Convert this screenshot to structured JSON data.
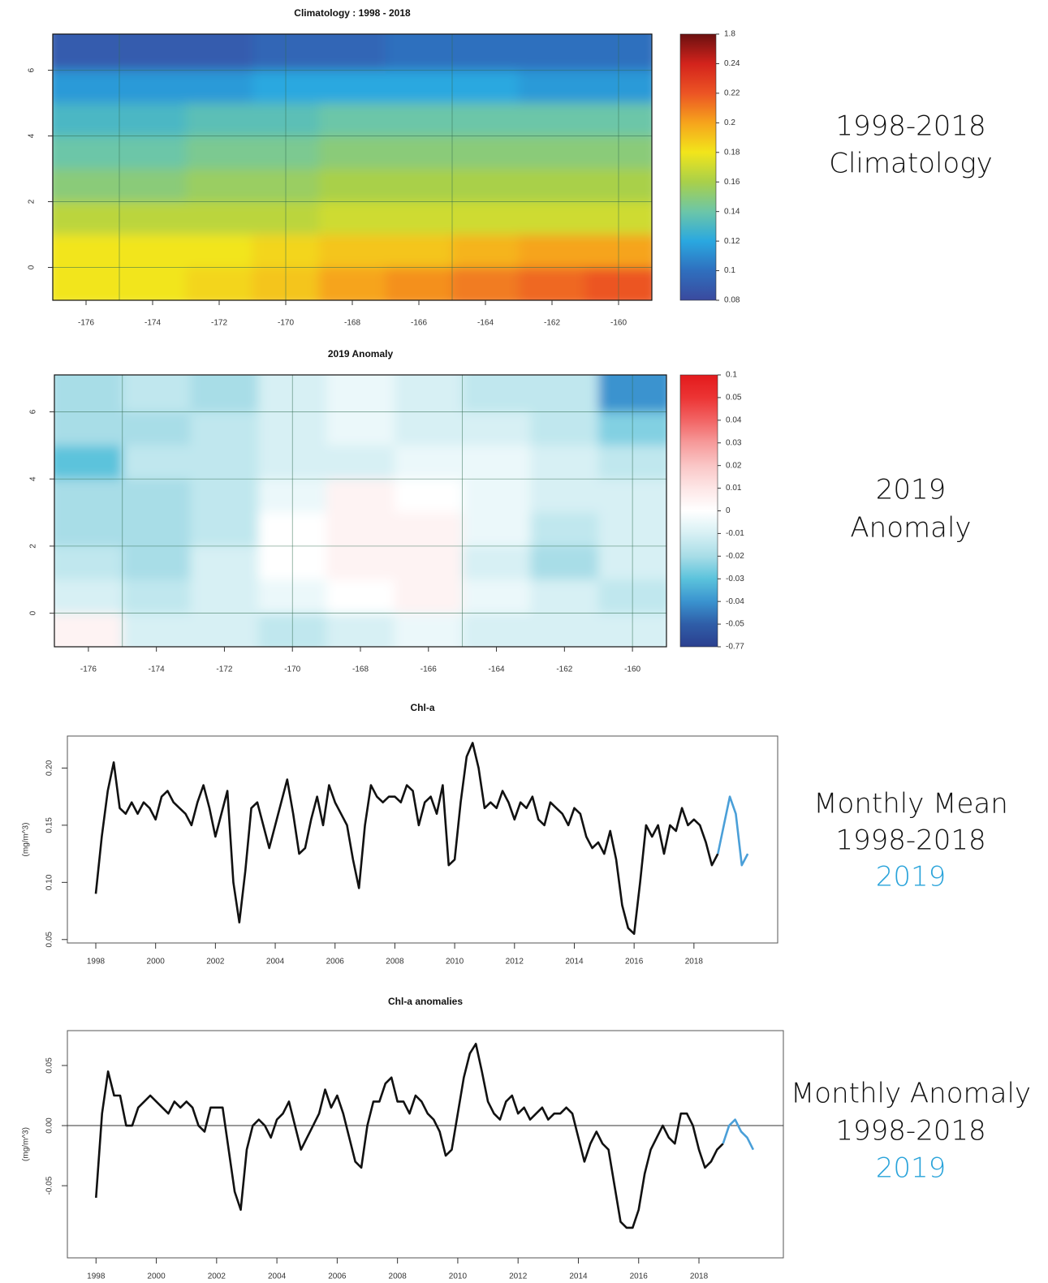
{
  "chart_data": [
    {
      "type": "heatmap",
      "title": "Climatology : 1998 - 2018",
      "x": [
        -176,
        -174,
        -172,
        -170,
        -168,
        -166,
        -164,
        -162,
        -160
      ],
      "y": [
        6.5,
        5.5,
        4.5,
        3.5,
        2.5,
        1.5,
        0.5,
        -0.5
      ],
      "z": [
        [
          0.09,
          0.09,
          0.09,
          0.095,
          0.095,
          0.1,
          0.1,
          0.1,
          0.1
        ],
        [
          0.115,
          0.115,
          0.115,
          0.12,
          0.12,
          0.12,
          0.12,
          0.115,
          0.115
        ],
        [
          0.13,
          0.13,
          0.135,
          0.135,
          0.14,
          0.14,
          0.14,
          0.14,
          0.14
        ],
        [
          0.14,
          0.14,
          0.145,
          0.145,
          0.15,
          0.15,
          0.15,
          0.15,
          0.15
        ],
        [
          0.15,
          0.15,
          0.155,
          0.155,
          0.16,
          0.16,
          0.16,
          0.16,
          0.16
        ],
        [
          0.165,
          0.165,
          0.165,
          0.165,
          0.17,
          0.17,
          0.17,
          0.17,
          0.17
        ],
        [
          0.18,
          0.18,
          0.18,
          0.185,
          0.19,
          0.19,
          0.195,
          0.2,
          0.2
        ],
        [
          0.18,
          0.18,
          0.185,
          0.19,
          0.2,
          0.205,
          0.21,
          0.215,
          0.22
        ]
      ],
      "xlim": [
        -177,
        -159
      ],
      "ylim": [
        -1,
        7.1
      ],
      "xticks": [
        -176,
        -174,
        -172,
        -170,
        -168,
        -166,
        -164,
        -162,
        -160
      ],
      "yticks": [
        0,
        2,
        4,
        6
      ],
      "xgrid": [
        -175,
        -170,
        -165,
        -160
      ],
      "ygrid": [
        0,
        2,
        4,
        6
      ],
      "colorbar": {
        "ticks": [
          1.8,
          0.24,
          0.22,
          0.2,
          0.18,
          0.16,
          0.14,
          0.12,
          0.1,
          0.08
        ],
        "colors": [
          "#6b1010",
          "#d3231c",
          "#ec5424",
          "#f6a41c",
          "#f2e51b",
          "#a9d04a",
          "#6cc6a8",
          "#2aa8e0",
          "#2f6fbe",
          "#3a4a9e"
        ]
      }
    },
    {
      "type": "heatmap",
      "title": "2019 Anomaly",
      "x": [
        -176,
        -174,
        -172,
        -170,
        -168,
        -166,
        -164,
        -162,
        -160
      ],
      "y": [
        6.5,
        5.5,
        4.5,
        3.5,
        2.5,
        1.5,
        0.5,
        -0.5
      ],
      "z": [
        [
          -0.02,
          -0.015,
          -0.02,
          -0.01,
          -0.005,
          -0.01,
          -0.015,
          -0.015,
          -0.04
        ],
        [
          -0.02,
          -0.02,
          -0.015,
          -0.01,
          -0.005,
          -0.01,
          -0.01,
          -0.015,
          -0.025
        ],
        [
          -0.03,
          -0.015,
          -0.015,
          -0.01,
          -0.01,
          -0.005,
          -0.005,
          -0.01,
          -0.015
        ],
        [
          -0.02,
          -0.02,
          -0.015,
          -0.005,
          0.005,
          0,
          -0.005,
          -0.01,
          -0.01
        ],
        [
          -0.02,
          -0.02,
          -0.015,
          0,
          0.005,
          0.005,
          -0.005,
          -0.015,
          -0.01
        ],
        [
          -0.015,
          -0.02,
          -0.01,
          0,
          0.005,
          0.005,
          -0.01,
          -0.02,
          -0.01
        ],
        [
          -0.01,
          -0.015,
          -0.01,
          -0.005,
          0,
          0.005,
          -0.005,
          -0.01,
          -0.015
        ],
        [
          0.005,
          -0.01,
          -0.01,
          -0.015,
          -0.01,
          -0.005,
          -0.01,
          -0.01,
          -0.01
        ]
      ],
      "xlim": [
        -177,
        -159
      ],
      "ylim": [
        -1,
        7.1
      ],
      "xticks": [
        -176,
        -174,
        -172,
        -170,
        -168,
        -166,
        -164,
        -162,
        -160
      ],
      "yticks": [
        0,
        2,
        4,
        6
      ],
      "xgrid": [
        -175,
        -170,
        -165,
        -160
      ],
      "ygrid": [
        0,
        2,
        4,
        6
      ],
      "colorbar": {
        "ticks": [
          0.1,
          0.05,
          0.04,
          0.03,
          0.02,
          0.01,
          0,
          -0.01,
          -0.02,
          -0.03,
          -0.04,
          -0.05,
          -0.77
        ],
        "colors": [
          "#e31a1c",
          "#ec3434",
          "#f26464",
          "#f69a9a",
          "#fac6c6",
          "#fde6e6",
          "#ffffff",
          "#d7f0f4",
          "#a8dde7",
          "#5bc3dc",
          "#3a93cf",
          "#2f5ea8",
          "#2b3f8f"
        ]
      }
    },
    {
      "type": "line",
      "title": "Chl-a",
      "ylabel": "(mg/m^3)",
      "x": [
        1998,
        1998.2,
        1998.4,
        1998.6,
        1998.8,
        1999,
        1999.2,
        1999.4,
        1999.6,
        1999.8,
        2000,
        2000.2,
        2000.4,
        2000.6,
        2000.8,
        2001,
        2001.2,
        2001.4,
        2001.6,
        2001.8,
        2002,
        2002.2,
        2002.4,
        2002.6,
        2002.8,
        2003,
        2003.2,
        2003.4,
        2003.6,
        2003.8,
        2004,
        2004.2,
        2004.4,
        2004.6,
        2004.8,
        2005,
        2005.2,
        2005.4,
        2005.6,
        2005.8,
        2006,
        2006.2,
        2006.4,
        2006.6,
        2006.8,
        2007,
        2007.2,
        2007.4,
        2007.6,
        2007.8,
        2008,
        2008.2,
        2008.4,
        2008.6,
        2008.8,
        2009,
        2009.2,
        2009.4,
        2009.6,
        2009.8,
        2010,
        2010.2,
        2010.4,
        2010.6,
        2010.8,
        2011,
        2011.2,
        2011.4,
        2011.6,
        2011.8,
        2012,
        2012.2,
        2012.4,
        2012.6,
        2012.8,
        2013,
        2013.2,
        2013.4,
        2013.6,
        2013.8,
        2014,
        2014.2,
        2014.4,
        2014.6,
        2014.8,
        2015,
        2015.2,
        2015.4,
        2015.6,
        2015.8,
        2016,
        2016.2,
        2016.4,
        2016.6,
        2016.8,
        2017,
        2017.2,
        2017.4,
        2017.6,
        2017.8,
        2018,
        2018.2,
        2018.4,
        2018.6,
        2018.8,
        2019,
        2019.2,
        2019.4,
        2019.6,
        2019.8
      ],
      "series": [
        {
          "name": "1998-2018",
          "color": "#111111",
          "values": [
            0.09,
            0.14,
            0.18,
            0.205,
            0.165,
            0.16,
            0.17,
            0.16,
            0.17,
            0.165,
            0.155,
            0.175,
            0.18,
            0.17,
            0.165,
            0.16,
            0.15,
            0.17,
            0.185,
            0.165,
            0.14,
            0.16,
            0.18,
            0.1,
            0.065,
            0.11,
            0.165,
            0.17,
            0.15,
            0.13,
            0.15,
            0.17,
            0.19,
            0.16,
            0.125,
            0.13,
            0.155,
            0.175,
            0.15,
            0.185,
            0.17,
            0.16,
            0.15,
            0.12,
            0.095,
            0.15,
            0.185,
            0.175,
            0.17,
            0.175,
            0.175,
            0.17,
            0.185,
            0.18,
            0.15,
            0.17,
            0.175,
            0.16,
            0.185,
            0.115,
            0.12,
            0.17,
            0.21,
            0.222,
            0.2,
            0.165,
            0.17,
            0.165,
            0.18,
            0.17,
            0.155,
            0.17,
            0.165,
            0.175,
            0.155,
            0.15,
            0.17,
            0.165,
            0.16,
            0.15,
            0.165,
            0.16,
            0.14,
            0.13,
            0.135,
            0.125,
            0.145,
            0.12,
            0.08,
            0.06,
            0.055,
            0.1,
            0.15,
            0.14,
            0.15,
            0.125,
            0.15,
            0.145,
            0.165,
            0.15,
            0.155,
            0.15,
            0.135,
            0.115,
            0.125,
            null,
            null,
            null,
            null,
            null
          ]
        },
        {
          "name": "2019",
          "color": "#4a9fd8",
          "values": [
            null,
            null,
            null,
            null,
            null,
            null,
            null,
            null,
            null,
            null,
            null,
            null,
            null,
            null,
            null,
            null,
            null,
            null,
            null,
            null,
            null,
            null,
            null,
            null,
            null,
            null,
            null,
            null,
            null,
            null,
            null,
            null,
            null,
            null,
            null,
            null,
            null,
            null,
            null,
            null,
            null,
            null,
            null,
            null,
            null,
            null,
            null,
            null,
            null,
            null,
            null,
            null,
            null,
            null,
            null,
            null,
            null,
            null,
            null,
            null,
            null,
            null,
            null,
            null,
            null,
            null,
            null,
            null,
            null,
            null,
            null,
            null,
            null,
            null,
            null,
            null,
            null,
            null,
            null,
            null,
            null,
            null,
            null,
            null,
            null,
            null,
            null,
            null,
            null,
            null,
            null,
            null,
            null,
            null,
            null,
            null,
            null,
            null,
            null,
            null,
            null,
            null,
            null,
            null,
            0.125,
            0.15,
            0.175,
            0.16,
            0.115,
            0.125
          ]
        }
      ],
      "xlim": [
        1997.05,
        2020.8
      ],
      "ylim": [
        0.047,
        0.228
      ],
      "xticks": [
        1998,
        2000,
        2002,
        2004,
        2006,
        2008,
        2010,
        2012,
        2014,
        2016,
        2018
      ],
      "yticks": [
        0.05,
        {
          "value": 0.1,
          "label": "0.10"
        },
        0.15,
        {
          "value": 0.2,
          "label": "0.20"
        }
      ]
    },
    {
      "type": "line",
      "title": "Chl-a anomalies",
      "ylabel": "(mg/m^3)",
      "x": [
        1998,
        1998.2,
        1998.4,
        1998.6,
        1998.8,
        1999,
        1999.2,
        1999.4,
        1999.6,
        1999.8,
        2000,
        2000.2,
        2000.4,
        2000.6,
        2000.8,
        2001,
        2001.2,
        2001.4,
        2001.6,
        2001.8,
        2002,
        2002.2,
        2002.4,
        2002.6,
        2002.8,
        2003,
        2003.2,
        2003.4,
        2003.6,
        2003.8,
        2004,
        2004.2,
        2004.4,
        2004.6,
        2004.8,
        2005,
        2005.2,
        2005.4,
        2005.6,
        2005.8,
        2006,
        2006.2,
        2006.4,
        2006.6,
        2006.8,
        2007,
        2007.2,
        2007.4,
        2007.6,
        2007.8,
        2008,
        2008.2,
        2008.4,
        2008.6,
        2008.8,
        2009,
        2009.2,
        2009.4,
        2009.6,
        2009.8,
        2010,
        2010.2,
        2010.4,
        2010.6,
        2010.8,
        2011,
        2011.2,
        2011.4,
        2011.6,
        2011.8,
        2012,
        2012.2,
        2012.4,
        2012.6,
        2012.8,
        2013,
        2013.2,
        2013.4,
        2013.6,
        2013.8,
        2014,
        2014.2,
        2014.4,
        2014.6,
        2014.8,
        2015,
        2015.2,
        2015.4,
        2015.6,
        2015.8,
        2016,
        2016.2,
        2016.4,
        2016.6,
        2016.8,
        2017,
        2017.2,
        2017.4,
        2017.6,
        2017.8,
        2018,
        2018.2,
        2018.4,
        2018.6,
        2018.8,
        2019,
        2019.2,
        2019.4,
        2019.6,
        2019.8
      ],
      "series": [
        {
          "name": "1998-2018",
          "color": "#111111",
          "values": [
            -0.06,
            0.01,
            0.045,
            0.025,
            0.025,
            0,
            0,
            0.015,
            0.02,
            0.025,
            0.02,
            0.015,
            0.01,
            0.02,
            0.015,
            0.02,
            0.015,
            0,
            -0.005,
            0.015,
            0.015,
            0.015,
            -0.02,
            -0.055,
            -0.07,
            -0.02,
            0,
            0.005,
            0,
            -0.01,
            0.005,
            0.01,
            0.02,
            0,
            -0.02,
            -0.01,
            0,
            0.01,
            0.03,
            0.015,
            0.025,
            0.01,
            -0.01,
            -0.03,
            -0.035,
            0,
            0.02,
            0.02,
            0.035,
            0.04,
            0.02,
            0.02,
            0.01,
            0.025,
            0.02,
            0.01,
            0.005,
            -0.005,
            -0.025,
            -0.02,
            0.01,
            0.04,
            0.06,
            0.068,
            0.045,
            0.02,
            0.01,
            0.005,
            0.02,
            0.025,
            0.01,
            0.015,
            0.005,
            0.01,
            0.015,
            0.005,
            0.01,
            0.01,
            0.015,
            0.01,
            -0.01,
            -0.03,
            -0.015,
            -0.005,
            -0.015,
            -0.02,
            -0.05,
            -0.08,
            -0.085,
            -0.085,
            -0.07,
            -0.04,
            -0.02,
            -0.01,
            0,
            -0.01,
            -0.015,
            0.01,
            0.01,
            0,
            -0.02,
            -0.035,
            -0.03,
            -0.02,
            -0.015,
            null,
            null,
            null,
            null,
            null
          ]
        },
        {
          "name": "2019",
          "color": "#4a9fd8",
          "values": [
            null,
            null,
            null,
            null,
            null,
            null,
            null,
            null,
            null,
            null,
            null,
            null,
            null,
            null,
            null,
            null,
            null,
            null,
            null,
            null,
            null,
            null,
            null,
            null,
            null,
            null,
            null,
            null,
            null,
            null,
            null,
            null,
            null,
            null,
            null,
            null,
            null,
            null,
            null,
            null,
            null,
            null,
            null,
            null,
            null,
            null,
            null,
            null,
            null,
            null,
            null,
            null,
            null,
            null,
            null,
            null,
            null,
            null,
            null,
            null,
            null,
            null,
            null,
            null,
            null,
            null,
            null,
            null,
            null,
            null,
            null,
            null,
            null,
            null,
            null,
            null,
            null,
            null,
            null,
            null,
            null,
            null,
            null,
            null,
            null,
            null,
            null,
            null,
            null,
            null,
            null,
            null,
            null,
            null,
            null,
            null,
            null,
            null,
            null,
            null,
            null,
            null,
            null,
            null,
            -0.015,
            0,
            0.005,
            -0.005,
            -0.01,
            -0.02
          ]
        }
      ],
      "xlim": [
        1997.05,
        2020.8
      ],
      "ylim": [
        -0.11,
        0.079
      ],
      "xticks": [
        1998,
        2000,
        2002,
        2004,
        2006,
        2008,
        2010,
        2012,
        2014,
        2016,
        2018
      ],
      "yticks": [
        -0.05,
        {
          "value": 0,
          "label": "0.00"
        },
        0.05
      ],
      "hline": 0
    }
  ],
  "side_labels": [
    [
      "1998-2018",
      "Climatology"
    ],
    [
      "2019",
      "Anomaly"
    ],
    [
      "Monthly Mean",
      "1998-2018",
      "2019"
    ],
    [
      "Monthly Anomaly",
      "1998-2018",
      "2019"
    ]
  ]
}
